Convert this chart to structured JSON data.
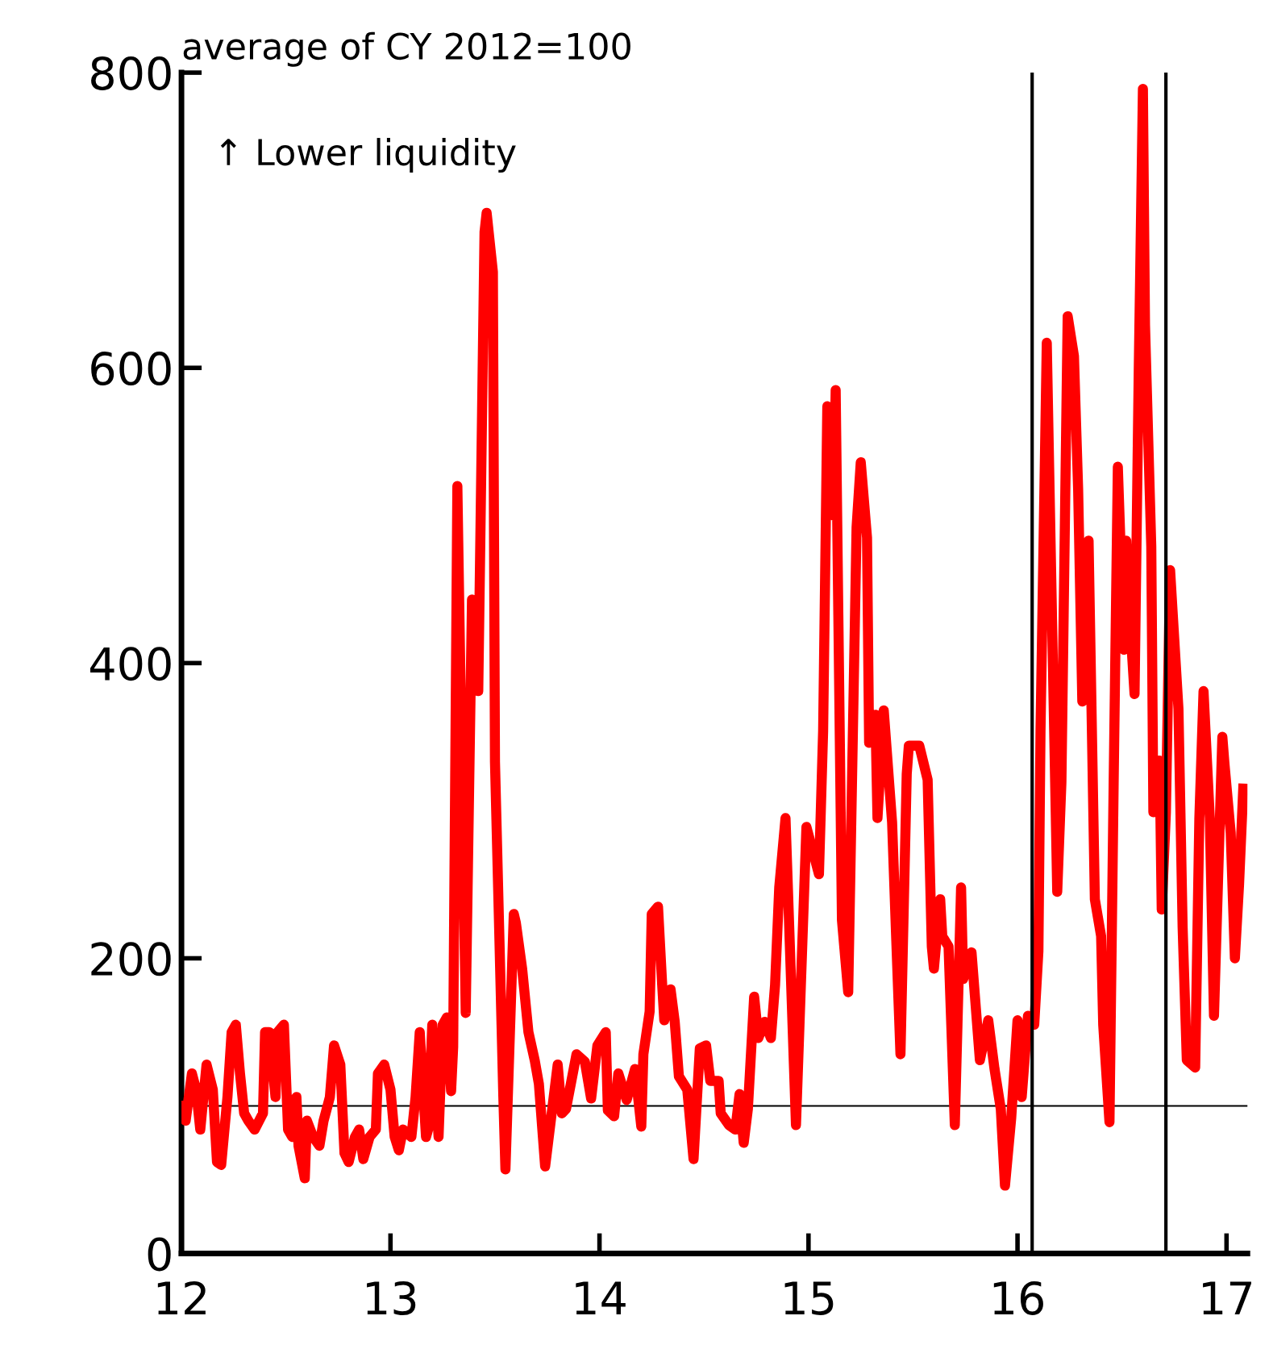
{
  "chart_data": {
    "type": "line",
    "ylabel": "average of CY 2012=100",
    "annotations": [
      "↑ Lower liquidity"
    ],
    "xlim": [
      12,
      17.1
    ],
    "xticks": [
      12,
      13,
      14,
      15,
      16,
      17
    ],
    "ylim": [
      0,
      800
    ],
    "yticks": [
      0,
      200,
      400,
      600,
      800
    ],
    "grid": false,
    "marker": "none",
    "line_style": "solid",
    "ref_lines": [
      {
        "axis": "y",
        "value": 100,
        "color": "#000000"
      },
      {
        "axis": "x",
        "value": 16.07,
        "color": "#000000"
      },
      {
        "axis": "x",
        "value": 16.71,
        "color": "#000000"
      }
    ],
    "series": [
      {
        "color": "#ff0000",
        "x": [
          12.0,
          12.02,
          12.05,
          12.07,
          12.09,
          12.12,
          12.15,
          12.17,
          12.19,
          12.22,
          12.24,
          12.26,
          12.28,
          12.3,
          12.32,
          12.35,
          12.39,
          12.4,
          12.42,
          12.45,
          12.46,
          12.49,
          12.51,
          12.53,
          12.55,
          12.56,
          12.59,
          12.6,
          12.63,
          12.66,
          12.68,
          12.71,
          12.73,
          12.76,
          12.78,
          12.8,
          12.83,
          12.85,
          12.87,
          12.9,
          12.93,
          12.94,
          12.97,
          13.0,
          13.02,
          13.04,
          13.06,
          13.1,
          13.12,
          13.14,
          13.17,
          13.18,
          13.2,
          13.23,
          13.25,
          13.27,
          13.29,
          13.3,
          13.32,
          13.36,
          13.39,
          13.42,
          13.45,
          13.46,
          13.49,
          13.5,
          13.52,
          13.54,
          13.55,
          13.59,
          13.6,
          13.63,
          13.66,
          13.69,
          13.71,
          13.74,
          13.8,
          13.82,
          13.84,
          13.89,
          13.93,
          13.96,
          13.99,
          14.03,
          14.04,
          14.07,
          14.09,
          14.13,
          14.17,
          14.2,
          14.21,
          14.24,
          14.25,
          14.28,
          14.3,
          14.31,
          14.34,
          14.36,
          14.38,
          14.42,
          14.45,
          14.48,
          14.51,
          14.53,
          14.57,
          14.58,
          14.62,
          14.65,
          14.67,
          14.69,
          14.71,
          14.74,
          14.76,
          14.79,
          14.82,
          14.84,
          14.86,
          14.89,
          14.94,
          14.99,
          15.05,
          15.07,
          15.09,
          15.12,
          15.13,
          15.16,
          15.19,
          15.23,
          15.25,
          15.28,
          15.29,
          15.32,
          15.33,
          15.36,
          15.4,
          15.42,
          15.44,
          15.47,
          15.48,
          15.53,
          15.57,
          15.59,
          15.6,
          15.63,
          15.64,
          15.67,
          15.7,
          15.73,
          15.74,
          15.78,
          15.82,
          15.86,
          15.89,
          15.92,
          15.94,
          15.97,
          16.0,
          16.02,
          16.05,
          16.08,
          16.1,
          16.11,
          16.14,
          16.19,
          16.21,
          16.24,
          16.27,
          16.29,
          16.31,
          16.34,
          16.37,
          16.4,
          16.41,
          16.44,
          16.46,
          16.48,
          16.51,
          16.52,
          16.54,
          16.56,
          16.58,
          16.6,
          16.61,
          16.64,
          16.65,
          16.68,
          16.69,
          16.71,
          16.73,
          16.77,
          16.79,
          16.81,
          16.85,
          16.87,
          16.89,
          16.92,
          16.94,
          16.98,
          16.99,
          17.02,
          17.04,
          17.06,
          17.08
        ],
        "values": [
          100,
          90,
          122,
          111,
          84,
          128,
          111,
          62,
          60,
          106,
          150,
          155,
          122,
          95,
          90,
          84,
          95,
          150,
          150,
          106,
          150,
          155,
          84,
          79,
          106,
          73,
          51,
          90,
          79,
          73,
          90,
          106,
          141,
          128,
          68,
          62,
          79,
          84,
          64,
          79,
          84,
          122,
          128,
          111,
          79,
          70,
          84,
          79,
          106,
          150,
          79,
          84,
          155,
          79,
          155,
          160,
          110,
          140,
          520,
          163,
          443,
          381,
          692,
          705,
          665,
          333,
          220,
          106,
          57,
          230,
          224,
          193,
          150,
          131,
          115,
          59,
          128,
          95,
          98,
          135,
          130,
          105,
          141,
          150,
          97,
          93,
          122,
          104,
          125,
          86,
          135,
          164,
          230,
          235,
          182,
          158,
          179,
          157,
          120,
          111,
          64,
          139,
          141,
          117,
          117,
          95,
          87,
          84,
          108,
          75,
          98,
          174,
          146,
          157,
          146,
          182,
          248,
          295,
          87,
          289,
          257,
          354,
          574,
          500,
          585,
          226,
          177,
          492,
          536,
          485,
          346,
          365,
          295,
          368,
          292,
          212,
          135,
          325,
          344,
          344,
          321,
          208,
          193,
          240,
          215,
          208,
          87,
          248,
          186,
          204,
          131,
          158,
          125,
          98,
          46,
          92,
          158,
          106,
          161,
          155,
          205,
          354,
          617,
          245,
          319,
          635,
          608,
          518,
          374,
          483,
          240,
          215,
          155,
          89,
          319,
          533,
          409,
          483,
          424,
          379,
          598,
          789,
          629,
          479,
          299,
          334,
          233,
          299,
          463,
          369,
          221,
          131,
          126,
          295,
          381,
          295,
          161,
          350,
          332,
          285,
          200,
          250,
          315
        ]
      }
    ]
  }
}
